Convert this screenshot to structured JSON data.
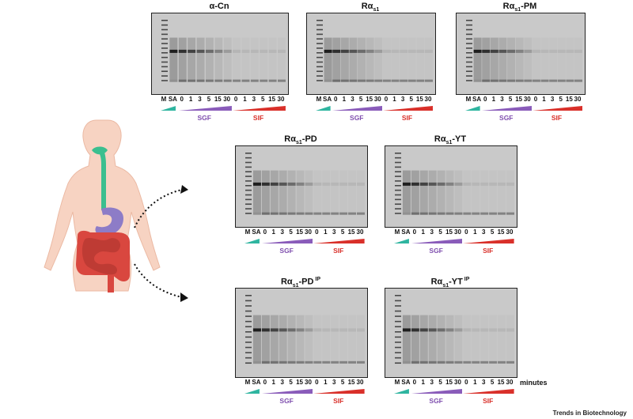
{
  "figure": {
    "panels": [
      {
        "key": "acn",
        "title_base": "α-Cn",
        "title_sub": "",
        "title_tail": "",
        "title_sup": ""
      },
      {
        "key": "ras1",
        "title_base": "Rα",
        "title_sub": "s1",
        "title_tail": "",
        "title_sup": ""
      },
      {
        "key": "pm",
        "title_base": "Rα",
        "title_sub": "s1",
        "title_tail": "-PM",
        "title_sup": ""
      },
      {
        "key": "pd",
        "title_base": "Rα",
        "title_sub": "s1",
        "title_tail": "-PD",
        "title_sup": ""
      },
      {
        "key": "yt",
        "title_base": "Rα",
        "title_sub": "s1",
        "title_tail": "-YT",
        "title_sup": ""
      },
      {
        "key": "pdip",
        "title_base": "Rα",
        "title_sub": "s1",
        "title_tail": "-PD",
        "title_sup": "IP"
      },
      {
        "key": "ytip",
        "title_base": "Rα",
        "title_sub": "s1",
        "title_tail": "-YT",
        "title_sup": "IP"
      }
    ],
    "lane_labels": [
      "M",
      "SA",
      "0",
      "1",
      "3",
      "5",
      "15",
      "30",
      "0",
      "1",
      "3",
      "5",
      "15",
      "30"
    ],
    "sgf_label": "SGF",
    "sif_label": "SIF",
    "minutes_label": "minutes",
    "credit": "Trends in Biotechnology",
    "colors": {
      "sgf": "#8a5cba",
      "sif": "#d9302a",
      "teal": "#2fb5a0",
      "gel": "#c9c9c9",
      "body": "#f7d3c2",
      "esophagus": "#3bbf8f",
      "stomach": "#8d7cc7",
      "intestine": "#d9473f"
    }
  }
}
